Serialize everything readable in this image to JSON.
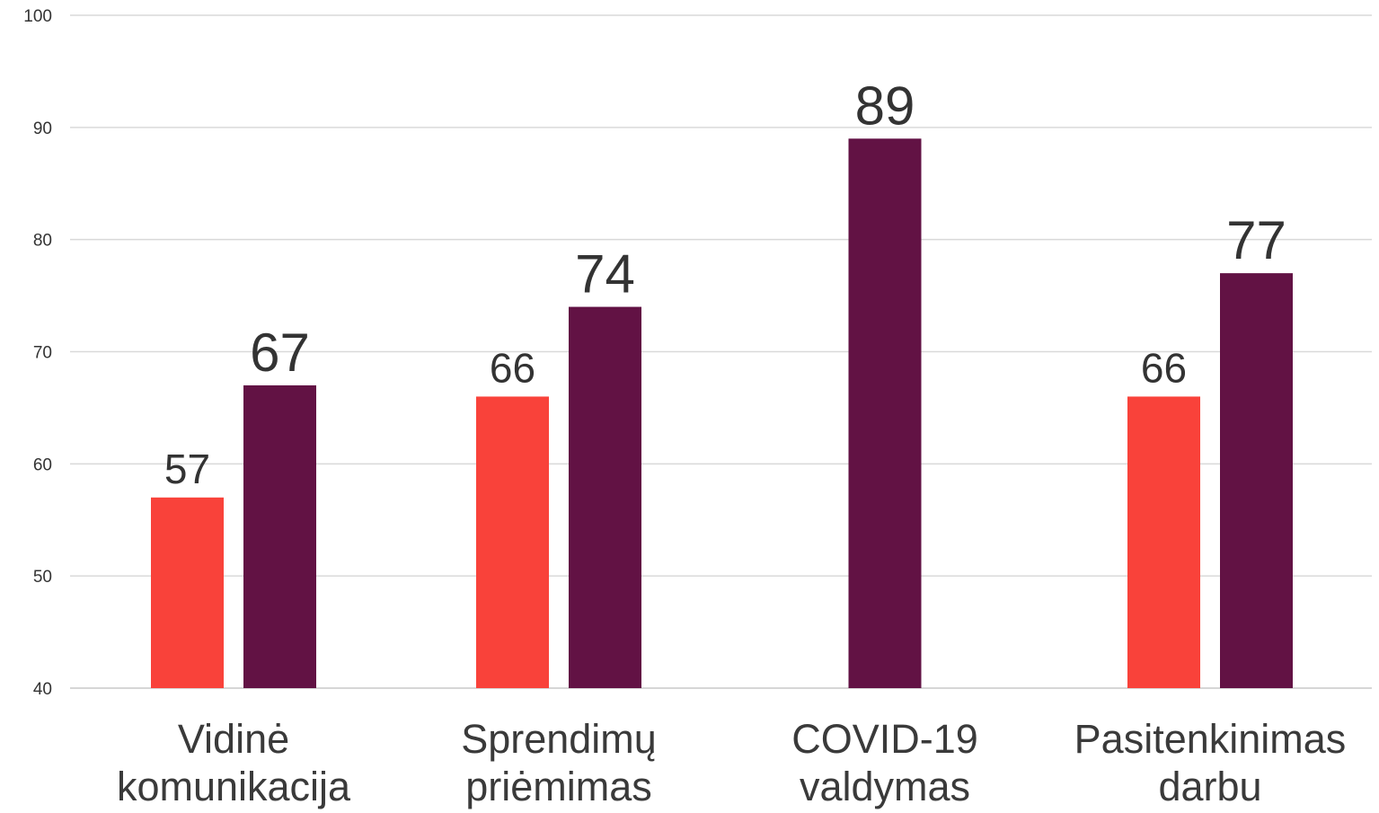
{
  "chart_data": {
    "type": "bar",
    "categories": [
      [
        "Vidinė",
        "komunikacija"
      ],
      [
        "Sprendimų",
        "priėmimas"
      ],
      [
        "COVID-19",
        "valdymas"
      ],
      [
        "Pasitenkinimas",
        "darbu"
      ]
    ],
    "series": [
      {
        "values": [
          57,
          66,
          null,
          66
        ],
        "color": "#f9423a"
      },
      {
        "values": [
          67,
          74,
          89,
          77
        ],
        "color": "#621244"
      }
    ],
    "ylim": [
      40,
      100
    ],
    "yticks": [
      40,
      50,
      60,
      70,
      80,
      90,
      100
    ],
    "grid": true,
    "legend": "none",
    "title": "",
    "xlabel": "",
    "ylabel": ""
  }
}
